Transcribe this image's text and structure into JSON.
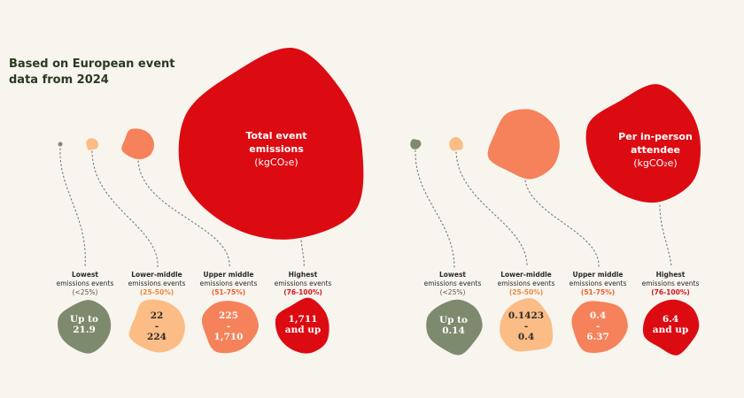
{
  "intro": {
    "line1": "Based on European event",
    "line2": "data from 2024"
  },
  "colors": {
    "background": "#f8f4ee",
    "lowest": "#7e8a6e",
    "lower_middle": "#fbbd85",
    "upper_middle": "#f5825a",
    "highest": "#dc0b12",
    "heading": "#2a3a22"
  },
  "panels": [
    {
      "title_line1": "Total event",
      "title_line2": "emissions",
      "unit": "(kgCO₂e)",
      "categories": [
        {
          "name": "Lowest",
          "sub": "emissions events",
          "pct": "(<25%)",
          "value_lines": [
            "Up to",
            "21.9"
          ],
          "color_key": "lowest"
        },
        {
          "name": "Lower-middle",
          "sub": "emissions events",
          "pct": "(25-50%)",
          "value_lines": [
            "22",
            "-",
            "224"
          ],
          "color_key": "lower_middle"
        },
        {
          "name": "Upper middle",
          "sub": "emissions events",
          "pct": "(51-75%)",
          "value_lines": [
            "225",
            "-",
            "1,710"
          ],
          "color_key": "upper_middle"
        },
        {
          "name": "Highest",
          "sub": "emissions events",
          "pct": "(76-100%)",
          "value_lines": [
            "1,711",
            "and up"
          ],
          "color_key": "highest"
        }
      ]
    },
    {
      "title_line1": "Per in-person",
      "title_line2": "attendee",
      "unit": "(kgCO₂e)",
      "categories": [
        {
          "name": "Lowest",
          "sub": "emissions events",
          "pct": "(<25%)",
          "value_lines": [
            "Up to",
            "0.14"
          ],
          "color_key": "lowest"
        },
        {
          "name": "Lower-middle",
          "sub": "emissions events",
          "pct": "(25-50%)",
          "value_lines": [
            "0.1423",
            "-",
            "0.4"
          ],
          "color_key": "lower_middle"
        },
        {
          "name": "Upper middle",
          "sub": "emissions events",
          "pct": "(51-75%)",
          "value_lines": [
            "0.4",
            "-",
            "6.37"
          ],
          "color_key": "upper_middle"
        },
        {
          "name": "Highest",
          "sub": "emissions events",
          "pct": "(76-100%)",
          "value_lines": [
            "6.4",
            "and up"
          ],
          "color_key": "highest"
        }
      ]
    }
  ]
}
